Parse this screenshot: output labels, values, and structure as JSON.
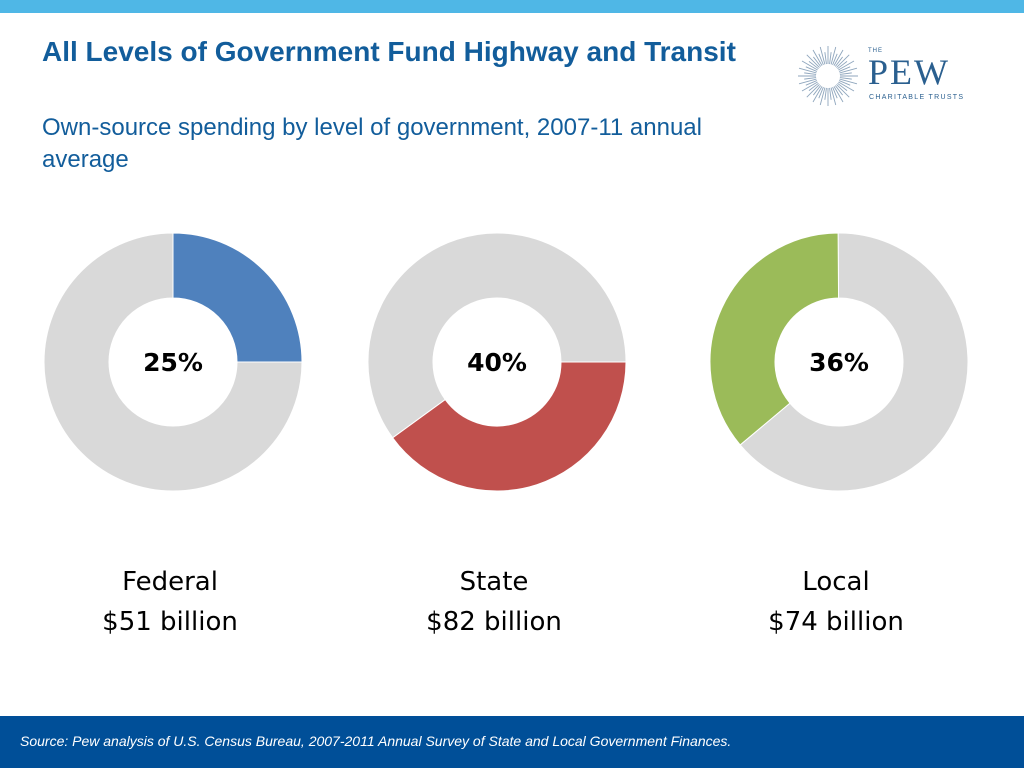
{
  "header": {
    "title": "All Levels of Government Fund Highway and Transit",
    "subtitle": "Own-source spending by level of government, 2007-11 annual average"
  },
  "logo": {
    "the": "THE",
    "name": "PEW",
    "sub": "CHARITABLE TRUSTS"
  },
  "colors": {
    "top_bar": "#4fb7e6",
    "title": "#125d9b",
    "footer": "#004f98",
    "remainder": "#d9d9d9",
    "federal": "#4f81bd",
    "state": "#c0504d",
    "local": "#9bbb59"
  },
  "chart_data": [
    {
      "type": "pie",
      "name": "Federal",
      "share_percent": 25,
      "center_label": "25%",
      "amount_label": "$51 billion",
      "segment_color": "#4f81bd",
      "start_angle_deg": 0
    },
    {
      "type": "pie",
      "name": "State",
      "share_percent": 40,
      "center_label": "40%",
      "amount_label": "$82 billion",
      "segment_color": "#c0504d",
      "start_angle_deg": 90
    },
    {
      "type": "pie",
      "name": "Local",
      "share_percent": 36,
      "center_label": "36%",
      "amount_label": "$74 billion",
      "segment_color": "#9bbb59",
      "start_angle_deg": 230
    }
  ],
  "footer": {
    "source": "Source: Pew analysis of U.S. Census Bureau, 2007-2011 Annual Survey of State and Local Government Finances."
  }
}
